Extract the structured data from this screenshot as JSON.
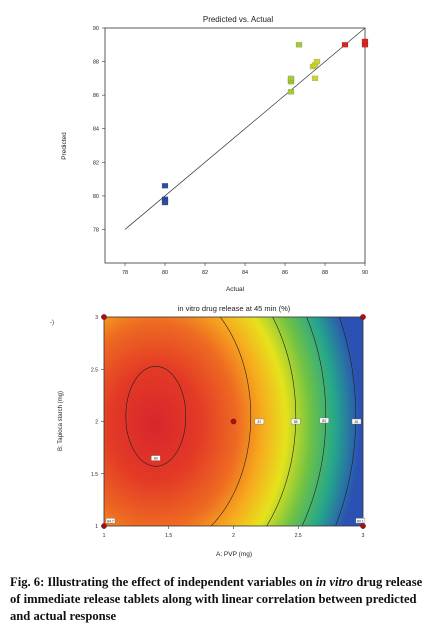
{
  "chart_data": [
    {
      "type": "scatter",
      "title": "Predicted vs. Actual",
      "xlabel": "Actual",
      "ylabel": "Predicted",
      "xlim": [
        77,
        90
      ],
      "ylim": [
        76,
        90
      ],
      "xticks": [
        "78",
        "80",
        "82",
        "84",
        "86",
        "88",
        "90"
      ],
      "yticks": [
        "78",
        "80",
        "82",
        "84",
        "86",
        "88",
        "90"
      ],
      "grid": false,
      "reference_line": "y = x",
      "point_colors": {
        "low": "#2e4fa0",
        "mid_low": "#a5c93a",
        "mid_high": "#c9d43a",
        "high": "#d9251d"
      },
      "series": [
        {
          "color": "#2e4fa0",
          "points": [
            [
              80.0,
              80.6
            ],
            [
              80.0,
              79.8
            ],
            [
              80.0,
              79.7
            ],
            [
              80.0,
              79.6
            ]
          ]
        },
        {
          "color": "#a5c93a",
          "points": [
            [
              86.3,
              86.2
            ],
            [
              86.3,
              86.8
            ],
            [
              86.3,
              86.9
            ],
            [
              86.3,
              87.0
            ],
            [
              86.7,
              89.0
            ]
          ]
        },
        {
          "color": "#c9d43a",
          "points": [
            [
              87.4,
              87.7
            ],
            [
              87.5,
              87.8
            ],
            [
              87.6,
              88.0
            ],
            [
              87.5,
              87.0
            ]
          ]
        },
        {
          "color": "#d9251d",
          "points": [
            [
              89.0,
              89.0
            ],
            [
              90.0,
              89.0
            ],
            [
              90.0,
              89.2
            ]
          ]
        }
      ]
    },
    {
      "type": "heatmap",
      "title": "in vitro drug release at 45 min (%)",
      "xlabel": "A: PVP (mg)",
      "ylabel": "B: Tapioca starch (mg)",
      "corner_label": "-)",
      "xlim": [
        1,
        3
      ],
      "ylim": [
        1,
        3
      ],
      "xticks": [
        "1",
        "1.5",
        "2",
        "2.5",
        "3"
      ],
      "yticks": [
        "1",
        "1.5",
        "2",
        "2.5",
        "3"
      ],
      "optimum": [
        1.4,
        2.05
      ],
      "contour_labels": [
        {
          "x": 1.05,
          "y": 1.05,
          "text": "84.7"
        },
        {
          "x": 1.4,
          "y": 1.65,
          "text": "89"
        },
        {
          "x": 2.2,
          "y": 2.0,
          "text": "87"
        },
        {
          "x": 2.48,
          "y": 2.0,
          "text": "85"
        },
        {
          "x": 2.7,
          "y": 2.01,
          "text": "83"
        },
        {
          "x": 2.95,
          "y": 2.0,
          "text": "81"
        },
        {
          "x": 2.98,
          "y": 1.05,
          "text": "80.1"
        }
      ],
      "design_points": [
        [
          1,
          1
        ],
        [
          1,
          3
        ],
        [
          3,
          1
        ],
        [
          3,
          3
        ],
        [
          2,
          2
        ]
      ],
      "colorscale": [
        "#d8262c",
        "#ee5b22",
        "#f7a91e",
        "#e6e21c",
        "#6fc244",
        "#25a68c",
        "#2b52b3"
      ]
    }
  ],
  "caption": {
    "lead": "Fig. 6: Illustrating the effect of independent variables on ",
    "ital1": "in",
    "ital2": "vitro",
    "tail": " drug release of immediate release tablets along with linear correlation between predicted and actual response"
  }
}
